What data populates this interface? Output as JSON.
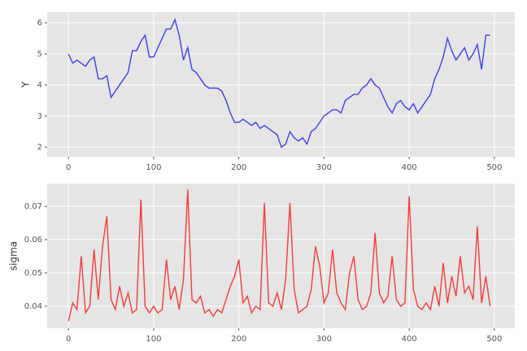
{
  "chart_data": [
    {
      "type": "line",
      "ylabel": "Y",
      "color": "#3f3fe8",
      "x": [
        0,
        5,
        10,
        15,
        20,
        25,
        30,
        35,
        40,
        45,
        50,
        55,
        60,
        65,
        70,
        75,
        80,
        85,
        90,
        95,
        100,
        105,
        110,
        115,
        120,
        125,
        130,
        135,
        140,
        145,
        150,
        155,
        160,
        165,
        170,
        175,
        180,
        185,
        190,
        195,
        200,
        205,
        210,
        215,
        220,
        225,
        230,
        235,
        240,
        245,
        250,
        255,
        260,
        265,
        270,
        275,
        280,
        285,
        290,
        295,
        300,
        305,
        310,
        315,
        320,
        325,
        330,
        335,
        340,
        345,
        350,
        355,
        360,
        365,
        370,
        375,
        380,
        385,
        390,
        395,
        400,
        405,
        410,
        415,
        420,
        425,
        430,
        435,
        440,
        445,
        450,
        455,
        460,
        465,
        470,
        475,
        480,
        485,
        490,
        495
      ],
      "values": [
        5.0,
        4.7,
        4.8,
        4.7,
        4.6,
        4.8,
        4.9,
        4.2,
        4.2,
        4.3,
        3.6,
        3.8,
        4.0,
        4.2,
        4.4,
        5.1,
        5.1,
        5.4,
        5.6,
        4.9,
        4.9,
        5.2,
        5.5,
        5.8,
        5.8,
        6.1,
        5.6,
        4.8,
        5.2,
        4.5,
        4.4,
        4.2,
        4.0,
        3.9,
        3.9,
        3.9,
        3.8,
        3.5,
        3.1,
        2.8,
        2.8,
        2.9,
        2.8,
        2.7,
        2.8,
        2.6,
        2.7,
        2.6,
        2.5,
        2.4,
        2.0,
        2.1,
        2.5,
        2.3,
        2.2,
        2.3,
        2.1,
        2.5,
        2.6,
        2.8,
        3.0,
        3.1,
        3.2,
        3.2,
        3.1,
        3.5,
        3.6,
        3.7,
        3.7,
        3.9,
        4.0,
        4.2,
        4.0,
        3.9,
        3.6,
        3.3,
        3.1,
        3.4,
        3.5,
        3.3,
        3.2,
        3.4,
        3.1,
        3.3,
        3.5,
        3.7,
        4.2,
        4.5,
        4.9,
        5.5,
        5.1,
        4.8,
        5.0,
        5.2,
        4.8,
        5.0,
        5.3,
        4.5,
        5.6,
        5.6
      ],
      "xlim": [
        -25,
        524
      ],
      "ylim": [
        1.69,
        6.34
      ],
      "xticks": [
        0,
        100,
        200,
        300,
        400,
        500
      ],
      "yticks": [
        2,
        3,
        4,
        5,
        6
      ],
      "grid": true
    },
    {
      "type": "line",
      "ylabel": "sigma",
      "color": "#f03c3c",
      "x": [
        0,
        5,
        10,
        15,
        20,
        25,
        30,
        35,
        40,
        45,
        50,
        55,
        60,
        65,
        70,
        75,
        80,
        85,
        90,
        95,
        100,
        105,
        110,
        115,
        120,
        125,
        130,
        135,
        140,
        145,
        150,
        155,
        160,
        165,
        170,
        175,
        180,
        185,
        190,
        195,
        200,
        205,
        210,
        215,
        220,
        225,
        230,
        235,
        240,
        245,
        250,
        255,
        260,
        265,
        270,
        275,
        280,
        285,
        290,
        295,
        300,
        305,
        310,
        315,
        320,
        325,
        330,
        335,
        340,
        345,
        350,
        355,
        360,
        365,
        370,
        375,
        380,
        385,
        390,
        395,
        400,
        405,
        410,
        415,
        420,
        425,
        430,
        435,
        440,
        445,
        450,
        455,
        460,
        465,
        470,
        475,
        480,
        485,
        490,
        495
      ],
      "values": [
        0.0355,
        0.041,
        0.039,
        0.055,
        0.038,
        0.04,
        0.057,
        0.042,
        0.058,
        0.067,
        0.042,
        0.039,
        0.046,
        0.04,
        0.044,
        0.038,
        0.039,
        0.072,
        0.04,
        0.038,
        0.04,
        0.038,
        0.039,
        0.054,
        0.042,
        0.046,
        0.039,
        0.048,
        0.075,
        0.042,
        0.041,
        0.043,
        0.038,
        0.039,
        0.037,
        0.039,
        0.038,
        0.042,
        0.046,
        0.049,
        0.054,
        0.041,
        0.043,
        0.038,
        0.04,
        0.039,
        0.071,
        0.041,
        0.04,
        0.044,
        0.039,
        0.048,
        0.071,
        0.045,
        0.038,
        0.039,
        0.04,
        0.045,
        0.058,
        0.052,
        0.041,
        0.044,
        0.057,
        0.044,
        0.041,
        0.039,
        0.05,
        0.055,
        0.042,
        0.039,
        0.04,
        0.044,
        0.062,
        0.044,
        0.041,
        0.043,
        0.055,
        0.042,
        0.04,
        0.041,
        0.073,
        0.045,
        0.04,
        0.039,
        0.041,
        0.039,
        0.046,
        0.04,
        0.053,
        0.041,
        0.049,
        0.043,
        0.055,
        0.044,
        0.046,
        0.042,
        0.064,
        0.041,
        0.049,
        0.04
      ],
      "xlim": [
        -25,
        524
      ],
      "ylim": [
        0.0334,
        0.0768
      ],
      "xticks": [
        0,
        100,
        200,
        300,
        400,
        500
      ],
      "yticks": [
        0.04,
        0.05,
        0.06,
        0.07
      ],
      "grid": true
    }
  ]
}
